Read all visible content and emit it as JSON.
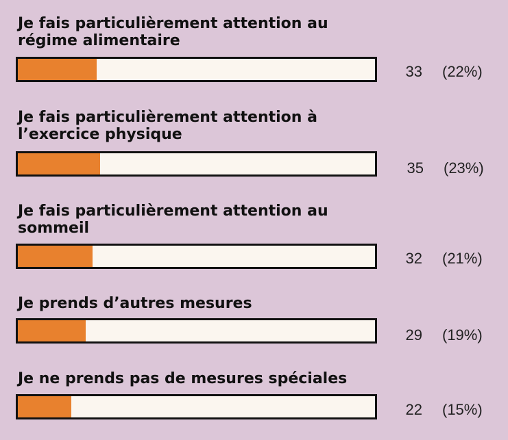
{
  "colors": {
    "background": "#dcc6d8",
    "bar_fill": "#e8812e",
    "bar_track": "#fbf6ef",
    "bar_border": "#111111"
  },
  "chart_data": {
    "type": "bar",
    "orientation": "horizontal",
    "title": "",
    "xlabel": "",
    "ylabel": "",
    "xlim": [
      0,
      100
    ],
    "grid": false,
    "categories": [
      "Je fais particulièrement attention au\nrégime alimentaire",
      "Je fais particulièrement attention à\nl’exercice physique",
      "Je fais particulièrement attention au\nsommeil",
      "Je prends d’autres mesures",
      "Je ne prends pas de mesures spéciales"
    ],
    "values": [
      33,
      35,
      32,
      29,
      22
    ],
    "percent_labels": [
      "(22%)",
      "(23%)",
      "(21%)",
      "(19%)",
      "(15%)"
    ],
    "percent_values": [
      22,
      23,
      21,
      19,
      15
    ]
  }
}
